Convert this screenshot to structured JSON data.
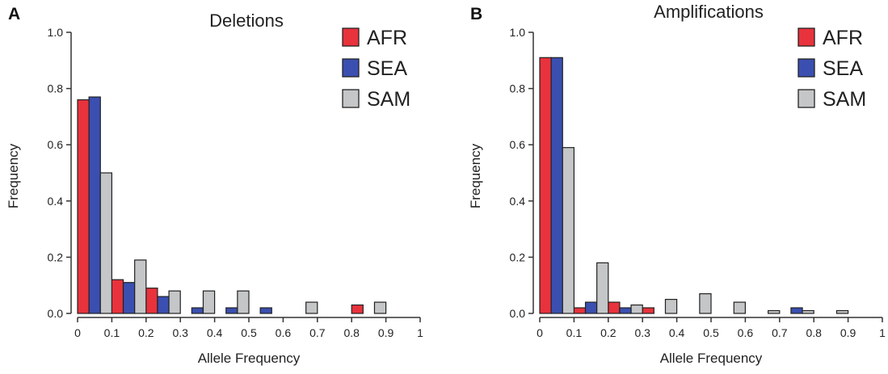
{
  "colors": {
    "AFR": "#e8323c",
    "SEA": "#3a4fb0",
    "SAM": "#c4c6c8",
    "axis": "#333333"
  },
  "chart_data": [
    {
      "panel_label": "A",
      "type": "bar",
      "title": "Deletions",
      "xlabel": "Allele Frequency",
      "ylabel": "Frequency",
      "ylim": [
        0,
        1.0
      ],
      "xlim": [
        0,
        1
      ],
      "yticks": [
        "0.0",
        "0.2",
        "0.4",
        "0.6",
        "0.8",
        "1.0"
      ],
      "xticks": [
        "0",
        "0.1",
        "0.2",
        "0.3",
        "0.4",
        "0.5",
        "0.6",
        "0.7",
        "0.8",
        "0.9",
        "1"
      ],
      "legend_position": "top-right",
      "bin_width": 0.1,
      "bin_starts": [
        0,
        0.1,
        0.2,
        0.3,
        0.4,
        0.5,
        0.6,
        0.7,
        0.8,
        0.9
      ],
      "series": [
        {
          "name": "AFR",
          "values": [
            0.76,
            0.12,
            0.09,
            0,
            0,
            0,
            0,
            0,
            0.03,
            0
          ]
        },
        {
          "name": "SEA",
          "values": [
            0.77,
            0.11,
            0.06,
            0.02,
            0.02,
            0.02,
            0,
            0,
            0,
            0
          ]
        },
        {
          "name": "SAM",
          "values": [
            0.5,
            0.19,
            0.08,
            0.08,
            0.08,
            0,
            0.04,
            0,
            0.04,
            0
          ]
        }
      ]
    },
    {
      "panel_label": "B",
      "type": "bar",
      "title": "Amplifications",
      "xlabel": "Allele Frequency",
      "ylabel": "Frequency",
      "ylim": [
        0,
        1.0
      ],
      "xlim": [
        0,
        1
      ],
      "yticks": [
        "0.0",
        "0.2",
        "0.4",
        "0.6",
        "0.8",
        "1.0"
      ],
      "xticks": [
        "0",
        "0.1",
        "0.2",
        "0.3",
        "0.4",
        "0.5",
        "0.6",
        "0.7",
        "0.8",
        "0.9",
        "1"
      ],
      "legend_position": "top-right",
      "bin_width": 0.1,
      "bin_starts": [
        0,
        0.1,
        0.2,
        0.3,
        0.4,
        0.5,
        0.6,
        0.7,
        0.8,
        0.9
      ],
      "series": [
        {
          "name": "AFR",
          "values": [
            0.91,
            0.02,
            0.04,
            0.02,
            0,
            0,
            0,
            0,
            0,
            0
          ]
        },
        {
          "name": "SEA",
          "values": [
            0.91,
            0.04,
            0.02,
            0,
            0,
            0,
            0,
            0.02,
            0,
            0
          ]
        },
        {
          "name": "SAM",
          "values": [
            0.59,
            0.18,
            0.03,
            0.05,
            0.07,
            0.04,
            0.01,
            0.01,
            0.01,
            0
          ]
        }
      ]
    }
  ]
}
